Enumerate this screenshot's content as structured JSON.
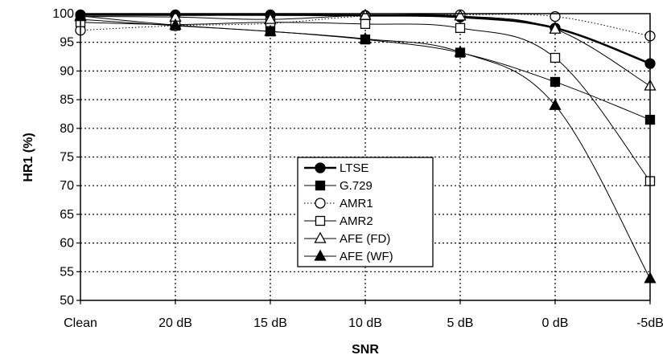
{
  "chart_data": {
    "type": "line",
    "title": "",
    "xlabel": "SNR",
    "ylabel": "HR1 (%)",
    "categories": [
      "Clean",
      "20 dB",
      "15 dB",
      "10 dB",
      "5 dB",
      "0 dB",
      "-5dB"
    ],
    "ylim": [
      50,
      100
    ],
    "yticks": [
      50,
      55,
      60,
      65,
      70,
      75,
      80,
      85,
      90,
      95,
      100
    ],
    "grid": "dotted",
    "legend_position": "center",
    "series": [
      {
        "name": "LTSE",
        "marker": "filled-circle",
        "line": "solid-thick",
        "values": [
          99.8,
          99.8,
          99.8,
          99.7,
          99.4,
          97.5,
          91.3
        ]
      },
      {
        "name": "G.729",
        "marker": "filled-square",
        "line": "solid",
        "values": [
          99.0,
          97.9,
          96.9,
          95.5,
          93.2,
          88.1,
          81.5
        ]
      },
      {
        "name": "AMR1",
        "marker": "open-circle",
        "line": "dotted",
        "values": [
          97.1,
          97.9,
          98.3,
          99.6,
          99.8,
          99.5,
          96.1
        ]
      },
      {
        "name": "AMR2",
        "marker": "open-square",
        "line": "solid",
        "values": [
          98.5,
          98.1,
          98.5,
          98.2,
          97.5,
          92.3,
          70.8
        ]
      },
      {
        "name": "AFE (FD)",
        "marker": "open-triangle",
        "line": "solid",
        "values": [
          99.5,
          99.4,
          99.0,
          99.7,
          99.6,
          97.3,
          87.4
        ]
      },
      {
        "name": "AFE (WF)",
        "marker": "filled-triangle",
        "line": "solid",
        "values": [
          99.6,
          98.0,
          96.9,
          95.6,
          93.3,
          84.0,
          53.8
        ]
      }
    ]
  }
}
